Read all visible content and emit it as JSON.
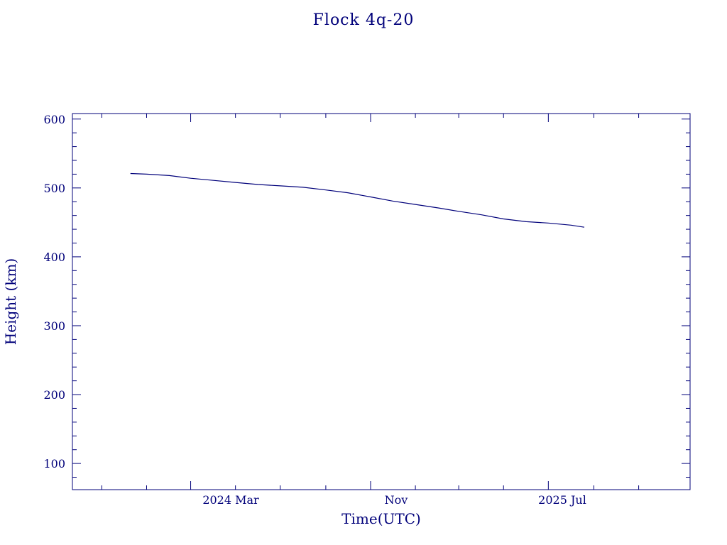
{
  "chart_data": {
    "type": "line",
    "title": "Flock 4q-20",
    "xlabel": "Time(UTC)",
    "ylabel": "Height (km)",
    "x_tick_labels": [
      "2024 Mar",
      "Nov",
      "2025 Jul"
    ],
    "y_tick_labels": [
      "100",
      "200",
      "300",
      "400",
      "500",
      "600"
    ],
    "ylim": [
      62,
      608
    ],
    "xlim": [
      "2023-09-22",
      "2026-01-10"
    ],
    "grid": false,
    "series": [
      {
        "x": [
          "2023-12-10",
          "2024-01-01",
          "2024-02-01",
          "2024-03-01",
          "2024-04-01",
          "2024-05-01",
          "2024-06-01",
          "2024-07-01",
          "2024-08-01",
          "2024-09-01",
          "2024-10-01",
          "2024-11-01",
          "2024-12-01",
          "2025-01-01",
          "2025-02-01",
          "2025-03-01",
          "2025-04-01",
          "2025-05-01",
          "2025-06-01",
          "2025-07-01",
          "2025-08-01",
          "2025-08-19"
        ],
        "y": [
          521,
          520,
          518,
          514,
          511,
          508,
          505,
          503,
          501,
          497,
          493,
          487,
          481,
          476,
          471,
          466,
          461,
          455,
          451,
          449,
          446,
          443
        ]
      }
    ],
    "colors": {
      "line": "#00007a",
      "axes": "#00007a"
    }
  }
}
